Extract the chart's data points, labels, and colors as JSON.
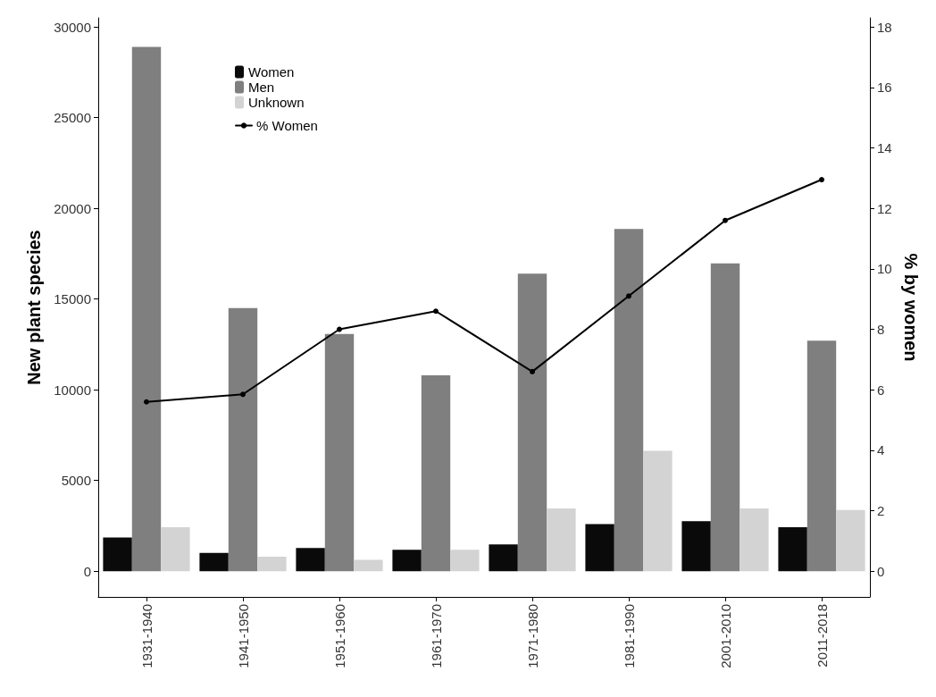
{
  "chart_data": {
    "type": "bar",
    "ylabel": "New plant species",
    "y2label": "% by women",
    "categories": [
      "1931-1940",
      "1941-1950",
      "1951-1960",
      "1961-1970",
      "1971-1980",
      "1981-1990",
      "2001-2010",
      "2011-2018"
    ],
    "series": [
      {
        "name": "Women",
        "color": "#0a0a0a",
        "values": [
          1850,
          1000,
          1280,
          1180,
          1470,
          2600,
          2750,
          2420
        ]
      },
      {
        "name": "Men",
        "color": "#7f7f7f",
        "values": [
          28900,
          14500,
          13080,
          10800,
          16400,
          18860,
          16970,
          12700
        ]
      },
      {
        "name": "Unknown",
        "color": "#d3d3d3",
        "values": [
          2420,
          800,
          620,
          1180,
          3460,
          6640,
          3460,
          3370
        ]
      },
      {
        "name": "% Women",
        "type": "line",
        "axis": "y2",
        "color": "#000000",
        "marker": "circle",
        "line_style": "solid",
        "values": [
          5.6,
          5.85,
          8.0,
          8.6,
          6.6,
          9.1,
          11.6,
          12.95
        ]
      }
    ],
    "ylim": [
      -1420,
      30500
    ],
    "yticks": [
      0,
      5000,
      10000,
      15000,
      20000,
      25000,
      30000
    ],
    "y2lim": [
      -0.85,
      18.3
    ],
    "y2ticks": [
      0,
      2,
      4,
      6,
      8,
      10,
      12,
      14,
      16,
      18
    ],
    "grid": false,
    "legend": "top left"
  }
}
